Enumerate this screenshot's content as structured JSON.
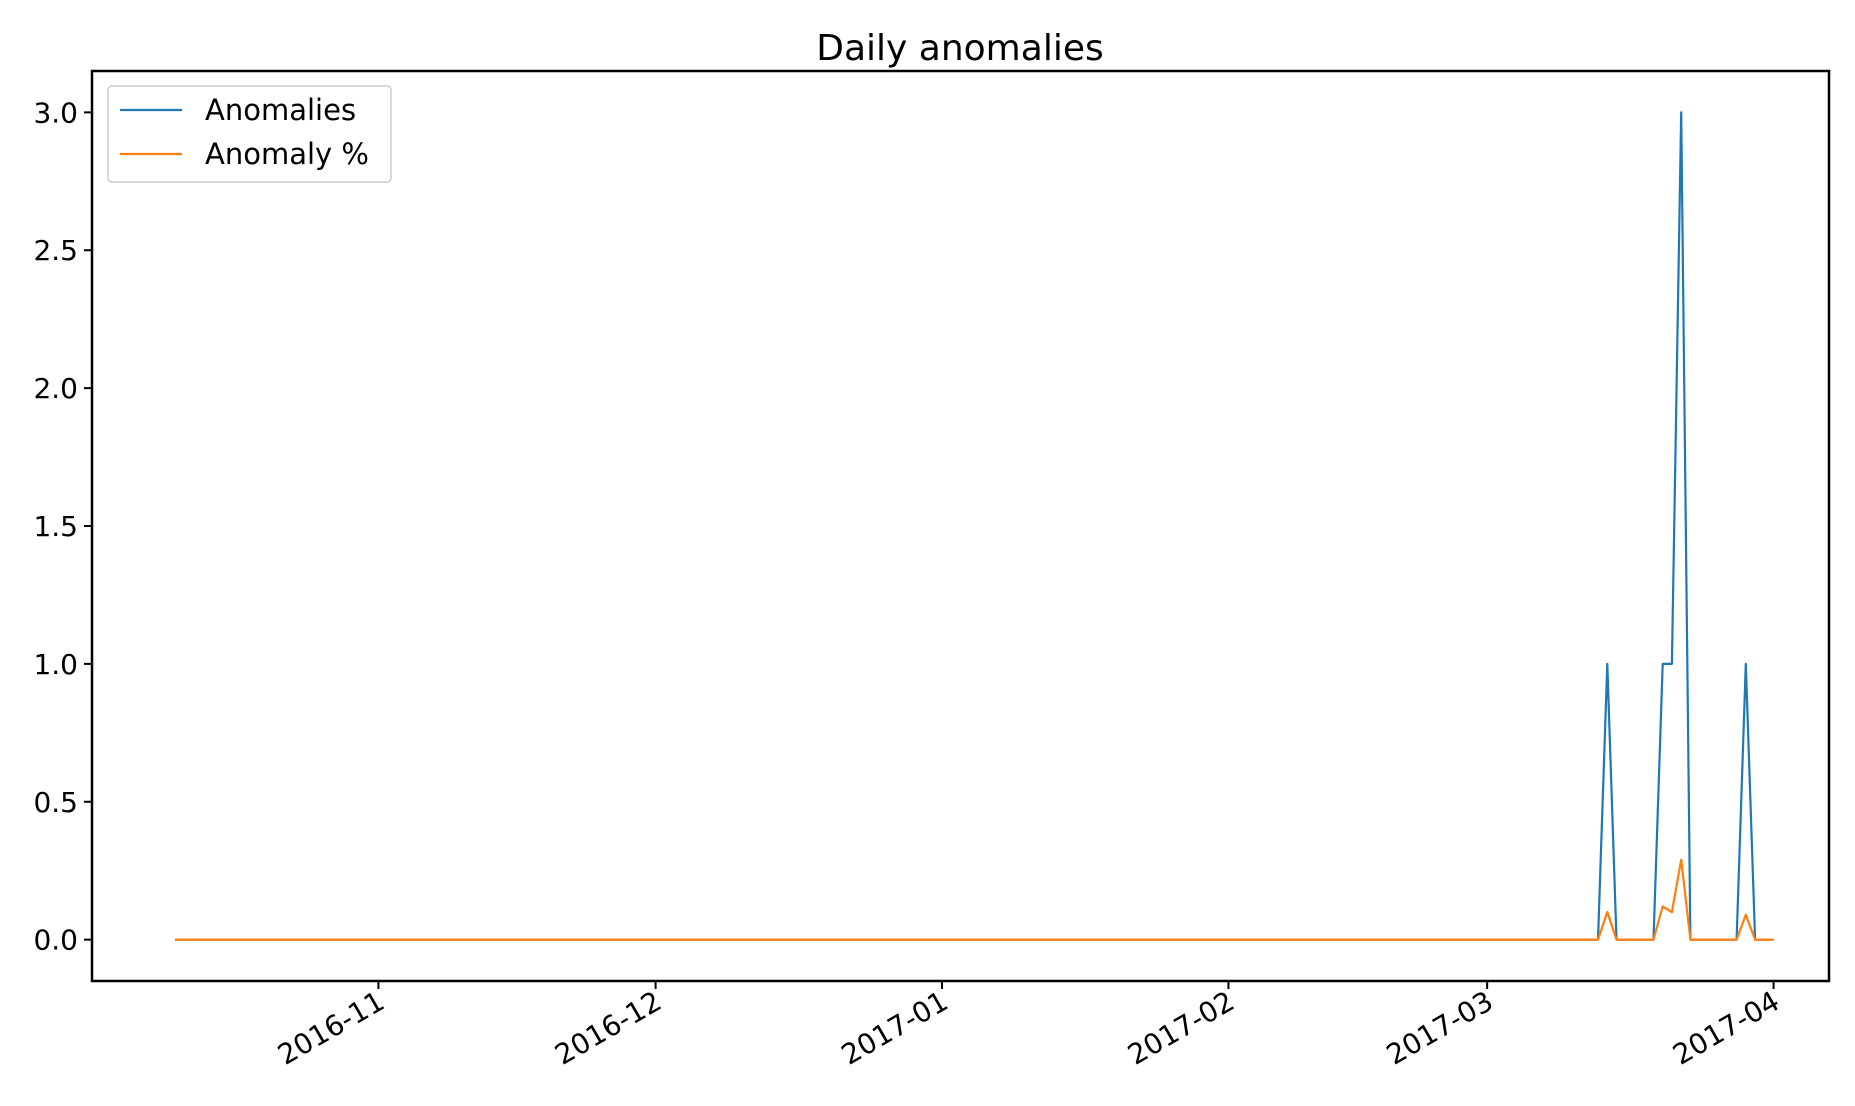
{
  "chart_data": {
    "type": "line",
    "title": "Daily anomalies",
    "xlabel": "",
    "ylabel": "",
    "x_axis": {
      "type": "date",
      "range": [
        "2016-10-01",
        "2017-04-07"
      ],
      "ticks": [
        {
          "date": "2016-11-01",
          "label": "2016-11"
        },
        {
          "date": "2016-12-01",
          "label": "2016-12"
        },
        {
          "date": "2017-01-01",
          "label": "2017-01"
        },
        {
          "date": "2017-02-01",
          "label": "2017-02"
        },
        {
          "date": "2017-03-01",
          "label": "2017-03"
        },
        {
          "date": "2017-04-01",
          "label": "2017-04"
        }
      ]
    },
    "y_axis": {
      "range": [
        -0.15,
        3.15
      ],
      "ticks": [
        {
          "value": 0.0,
          "label": "0.0"
        },
        {
          "value": 0.5,
          "label": "0.5"
        },
        {
          "value": 1.0,
          "label": "1.0"
        },
        {
          "value": 1.5,
          "label": "1.5"
        },
        {
          "value": 2.0,
          "label": "2.0"
        },
        {
          "value": 2.5,
          "label": "2.5"
        },
        {
          "value": 3.0,
          "label": "3.0"
        }
      ]
    },
    "grid": false,
    "legend": {
      "position": "top-left"
    },
    "series": [
      {
        "name": "Anomalies",
        "color": "#1f77b4",
        "points": [
          [
            "2016-10-10",
            0
          ],
          [
            "2017-03-13",
            0
          ],
          [
            "2017-03-14",
            1
          ],
          [
            "2017-03-15",
            0
          ],
          [
            "2017-03-19",
            0
          ],
          [
            "2017-03-20",
            1
          ],
          [
            "2017-03-21",
            1
          ],
          [
            "2017-03-22",
            3
          ],
          [
            "2017-03-23",
            0
          ],
          [
            "2017-03-28",
            0
          ],
          [
            "2017-03-29",
            1
          ],
          [
            "2017-03-30",
            0
          ],
          [
            "2017-04-01",
            0
          ]
        ]
      },
      {
        "name": "Anomaly %",
        "color": "#ff7f0e",
        "points": [
          [
            "2016-10-10",
            0
          ],
          [
            "2017-03-13",
            0
          ],
          [
            "2017-03-14",
            0.1
          ],
          [
            "2017-03-15",
            0
          ],
          [
            "2017-03-19",
            0
          ],
          [
            "2017-03-20",
            0.12
          ],
          [
            "2017-03-21",
            0.1
          ],
          [
            "2017-03-22",
            0.29
          ],
          [
            "2017-03-23",
            0
          ],
          [
            "2017-03-28",
            0
          ],
          [
            "2017-03-29",
            0.09
          ],
          [
            "2017-03-30",
            0
          ],
          [
            "2017-04-01",
            0
          ]
        ]
      }
    ]
  }
}
